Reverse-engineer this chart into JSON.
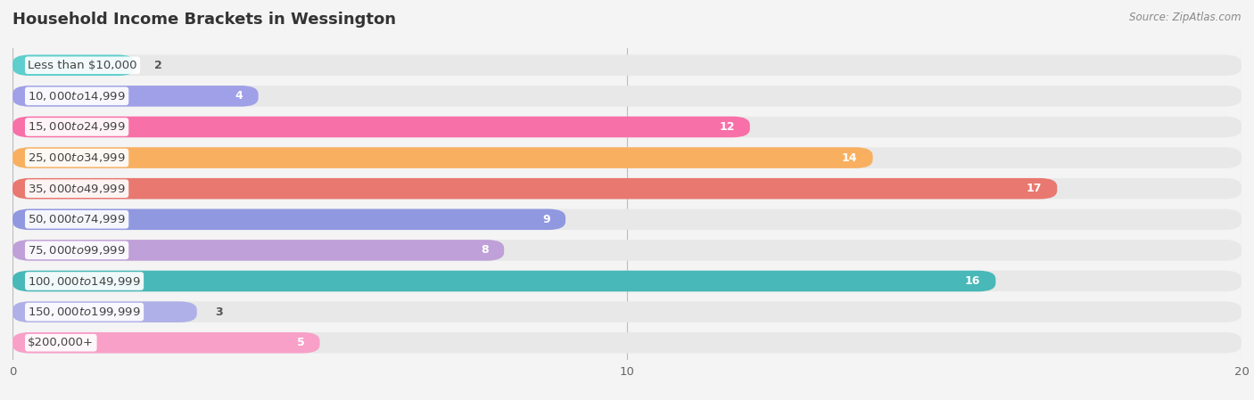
{
  "title": "Household Income Brackets in Wessington",
  "source": "Source: ZipAtlas.com",
  "categories": [
    "Less than $10,000",
    "$10,000 to $14,999",
    "$15,000 to $24,999",
    "$25,000 to $34,999",
    "$35,000 to $49,999",
    "$50,000 to $74,999",
    "$75,000 to $99,999",
    "$100,000 to $149,999",
    "$150,000 to $199,999",
    "$200,000+"
  ],
  "values": [
    2,
    4,
    12,
    14,
    17,
    9,
    8,
    16,
    3,
    5
  ],
  "bar_colors": [
    "#5ecece",
    "#a0a0e8",
    "#f870a8",
    "#f8b060",
    "#e87870",
    "#9098e0",
    "#c0a0d8",
    "#48b8b8",
    "#b0b0e8",
    "#f8a0c8"
  ],
  "xlim": [
    0,
    20
  ],
  "xticks": [
    0,
    10,
    20
  ],
  "bg_color": "#f4f4f4",
  "row_bg_color": "#e8e8e8",
  "label_bg_color": "#ffffff",
  "title_fontsize": 13,
  "label_fontsize": 9.5,
  "value_fontsize": 9,
  "source_fontsize": 8.5
}
